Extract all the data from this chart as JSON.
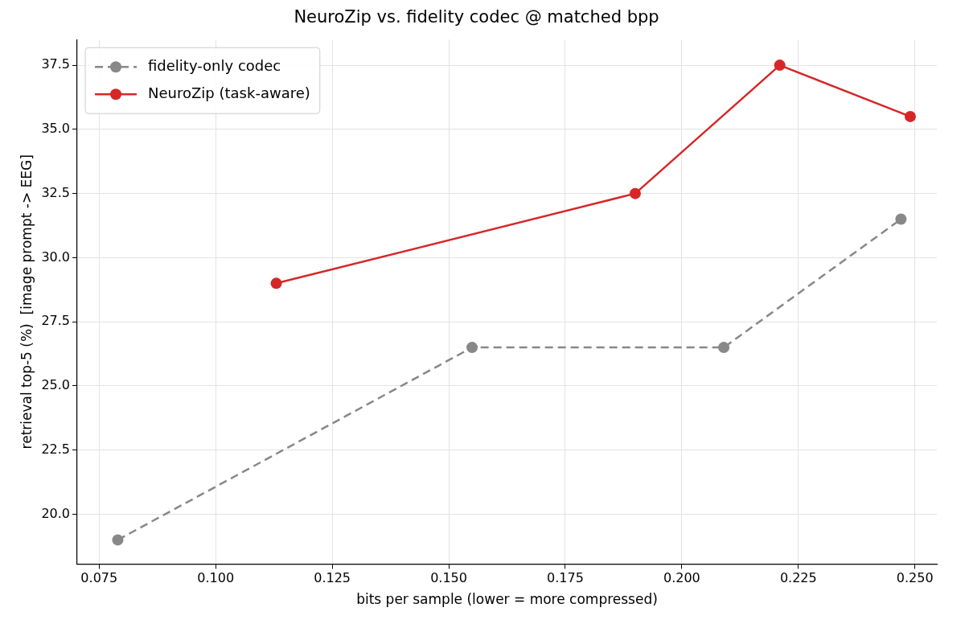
{
  "chart_data": {
    "type": "line",
    "title": "NeuroZip vs. fidelity codec @ matched bpp",
    "xlabel": "bits per sample (lower = more compressed)",
    "ylabel": "retrieval top-5 (%)  [image prompt -> EEG]",
    "xlim": [
      0.0703,
      0.2547
    ],
    "xticks": [
      {
        "value": 0.075,
        "label": "0.075"
      },
      {
        "value": 0.1,
        "label": "0.100"
      },
      {
        "value": 0.125,
        "label": "0.125"
      },
      {
        "value": 0.15,
        "label": "0.150"
      },
      {
        "value": 0.175,
        "label": "0.175"
      },
      {
        "value": 0.2,
        "label": "0.200"
      },
      {
        "value": 0.225,
        "label": "0.225"
      },
      {
        "value": 0.25,
        "label": "0.250"
      }
    ],
    "ylim": [
      18.06,
      38.5
    ],
    "yticks": [
      {
        "value": 20,
        "label": "20.0"
      },
      {
        "value": 22.5,
        "label": "22.5"
      },
      {
        "value": 25,
        "label": "25.0"
      },
      {
        "value": 27.5,
        "label": "27.5"
      },
      {
        "value": 30,
        "label": "30.0"
      },
      {
        "value": 32.5,
        "label": "32.5"
      },
      {
        "value": 35,
        "label": "35.0"
      },
      {
        "value": 37.5,
        "label": "37.5"
      }
    ],
    "grid": true,
    "legend": "top left",
    "marker": "circle",
    "series": [
      {
        "name": "fidelity-only codec",
        "color": "#888888",
        "line_style": "dashed",
        "x": [
          0.079,
          0.155,
          0.209,
          0.247
        ],
        "values": [
          19.0,
          26.5,
          26.5,
          31.5
        ]
      },
      {
        "name": "NeuroZip (task-aware)",
        "color": "#d62728",
        "line_style": "solid",
        "x": [
          0.113,
          0.19,
          0.221,
          0.249
        ],
        "values": [
          29.0,
          32.5,
          37.5,
          35.5
        ]
      }
    ]
  }
}
